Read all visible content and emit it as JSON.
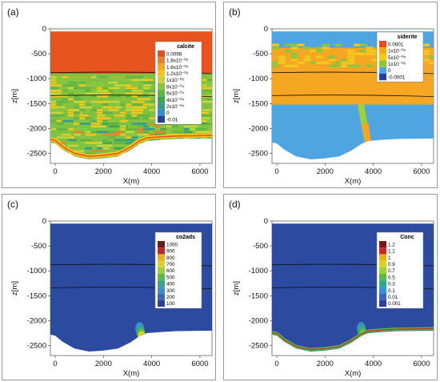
{
  "panels": [
    {
      "label": "(a)",
      "legend_title": "calcite",
      "legend_items": [
        "0.0098",
        "1.8x10⁻⁰³",
        "1.6x10⁻⁰³",
        "1.2x10⁻⁰³",
        "1x10⁻⁰³",
        "8x10⁻⁰⁴",
        "6x10⁻⁰⁴",
        "4x10⁻⁰⁴",
        "2x10⁻⁰⁴",
        "0",
        "-0.01"
      ],
      "legend_colors": [
        "#e84c1c",
        "#f07e2a",
        "#f5a623",
        "#f6c81c",
        "#c7d63a",
        "#8cc63f",
        "#5fb446",
        "#3fa34d",
        "#2f9e8e",
        "#2f8fd0",
        "#2a3f9c"
      ]
    },
    {
      "label": "(b)",
      "legend_title": "siderite",
      "legend_items": [
        "0.0001",
        "1x10⁻⁰⁵",
        "5x10⁻⁰⁵",
        "1x10⁻⁰⁶",
        "0",
        "-0.0001"
      ],
      "legend_colors": [
        "#e84c1c",
        "#f5a623",
        "#f6c81c",
        "#8cc63f",
        "#4ea5e0",
        "#2a3f9c"
      ]
    },
    {
      "label": "(c)",
      "legend_title": "co2ads",
      "legend_items": [
        "1000",
        "900",
        "800",
        "700",
        "600",
        "500",
        "400",
        "300",
        "200",
        "100"
      ],
      "legend_colors": [
        "#6b1a1a",
        "#c0242e",
        "#e3b21e",
        "#d8d42a",
        "#9fcf3a",
        "#59b94d",
        "#35a48b",
        "#3a8fd0",
        "#3a66bb",
        "#2c3f9a"
      ]
    },
    {
      "label": "(d)",
      "legend_title": "Conc",
      "legend_items": [
        "1.2",
        "1.1",
        "1",
        "0.9",
        "0.7",
        "0.5",
        "0.3",
        "0.1",
        "0.01",
        "0.001"
      ],
      "legend_colors": [
        "#7a1818",
        "#c02a2e",
        "#e3b21e",
        "#d8d42a",
        "#9fcf3a",
        "#59b94d",
        "#35a48b",
        "#3a8fd0",
        "#3a66bb",
        "#2c3f9a"
      ]
    }
  ],
  "axes": {
    "xlabel": "X(m)",
    "ylabel": "z[m]",
    "x_ticks": [
      "0",
      "2000",
      "4000",
      "6000"
    ],
    "y_ticks": [
      "0",
      "-500",
      "-1000",
      "-1500",
      "-2000",
      "-2500"
    ],
    "xlim": [
      -200,
      6500
    ],
    "ylim": [
      -2700,
      0
    ]
  },
  "colors": {
    "background": "#2b4aa0",
    "calcite_top": "#e8541e",
    "siderite_field": "#f5a623",
    "siderite_lower": "#4ea5e0",
    "layer_line": "#111111"
  }
}
